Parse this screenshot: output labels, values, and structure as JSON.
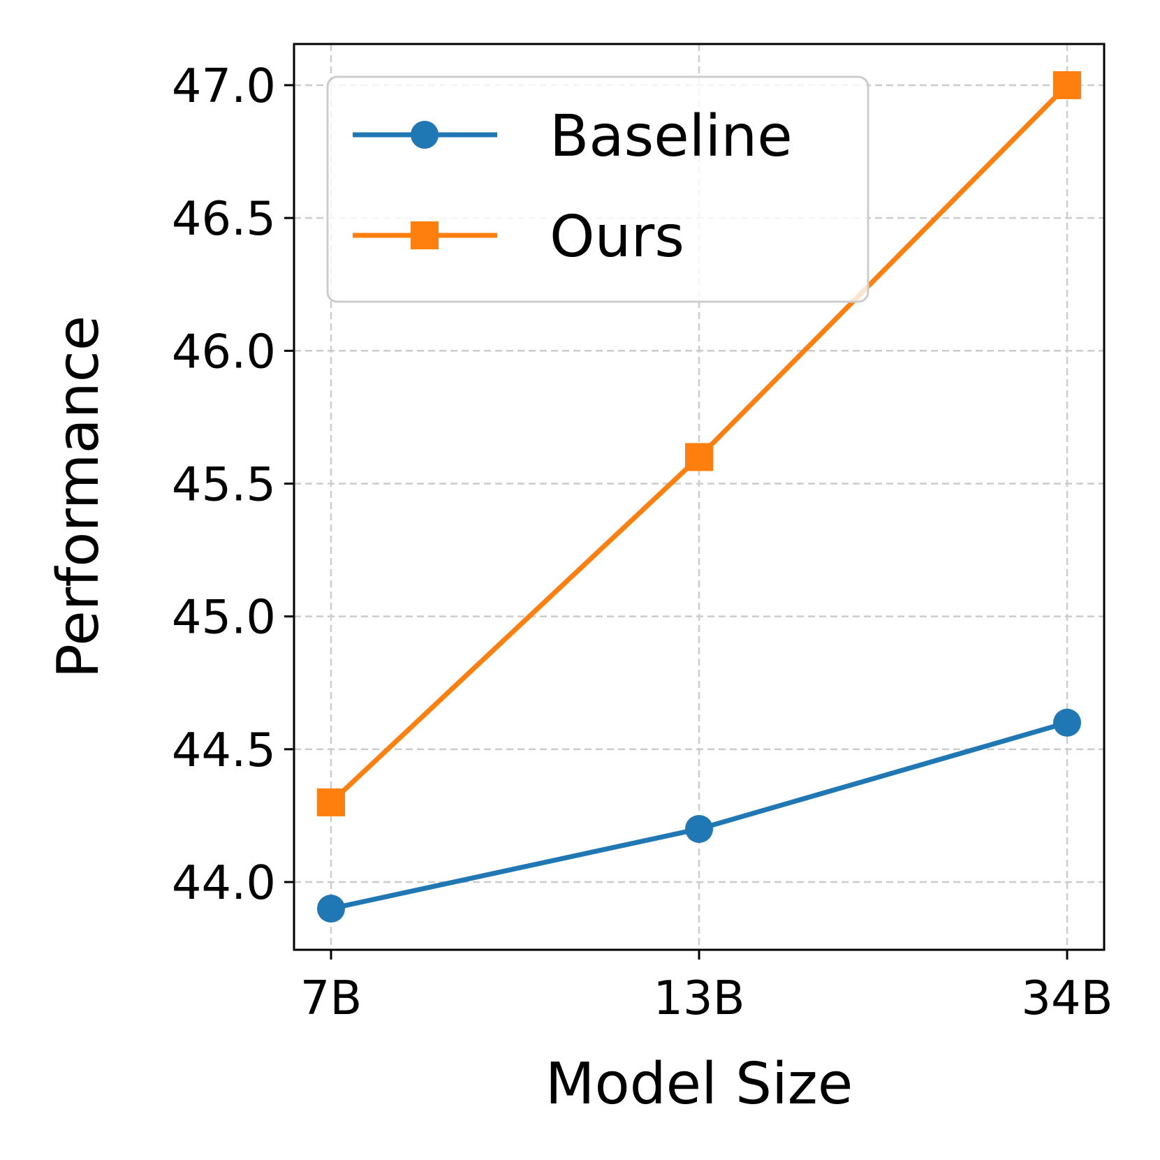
{
  "chart_data": {
    "type": "line",
    "title": "",
    "xlabel": "Model Size",
    "ylabel": "Performance",
    "categories": [
      "7B",
      "13B",
      "34B"
    ],
    "yticks": [
      "44.0",
      "44.5",
      "45.0",
      "45.5",
      "46.0",
      "46.5",
      "47.0"
    ],
    "ylim": [
      43.745,
      47.155
    ],
    "grid": true,
    "legend_position": "upper-left",
    "series": [
      {
        "name": "Baseline",
        "values": [
          43.9,
          44.2,
          44.6
        ],
        "color": "#1f77b4",
        "marker": "circle"
      },
      {
        "name": "Ours",
        "values": [
          44.3,
          45.6,
          47.0
        ],
        "color": "#ff7f0e",
        "marker": "square"
      }
    ]
  }
}
